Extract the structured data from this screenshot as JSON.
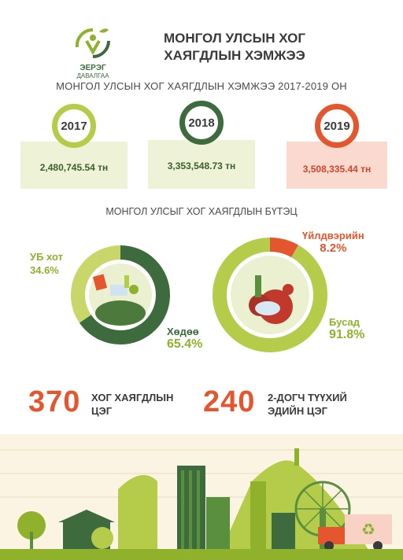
{
  "logo": {
    "line1": "ЭЕРЭГ",
    "line2": "ДАВАЛГАА"
  },
  "title": {
    "line1": "МОНГОЛ УЛСЫН ХОГ",
    "line2": "ХАЯГДЛЫН ХЭМЖЭЭ"
  },
  "subtitle": "МОНГОЛ УЛСЫН ХОГ ХАЯГДЛЫН ХЭМЖЭЭ 2017-2019 ОН",
  "years": [
    {
      "year": "2017",
      "amount": "2,480,745.54 тн"
    },
    {
      "year": "2018",
      "amount": "3,353,548.73 тн"
    },
    {
      "year": "2019",
      "amount": "3,508,335.44 тн"
    }
  ],
  "structure_title": "МОНГОЛ УЛСЫГ ХОГ ХАЯГДЛЫН БҮТЭЦ",
  "chart_data": [
    {
      "type": "pie",
      "categories": [
        "УБ хот",
        "Хөдөө"
      ],
      "values": [
        34.6,
        65.4
      ],
      "labels": [
        "34.6%",
        "65.4%"
      ]
    },
    {
      "type": "pie",
      "categories": [
        "Үйлдвэрийн",
        "Бусад"
      ],
      "values": [
        8.2,
        91.8
      ],
      "labels": [
        "8.2%",
        "91.8%"
      ]
    }
  ],
  "stats": [
    {
      "number": "370",
      "line1": "ХОГ ХАЯГДЛЫН",
      "line2": "ЦЭГ"
    },
    {
      "number": "240",
      "line1": "2-ДОГЧ ТҮҮХИЙ",
      "line2": "ЭДИЙН ЦЭГ"
    }
  ],
  "colors": {
    "dark_green": "#3d6b3e",
    "light_green": "#b5cc4a",
    "orange": "#e4572e",
    "pale_green": "#eef3d8",
    "pale_red": "#fad9cf"
  }
}
